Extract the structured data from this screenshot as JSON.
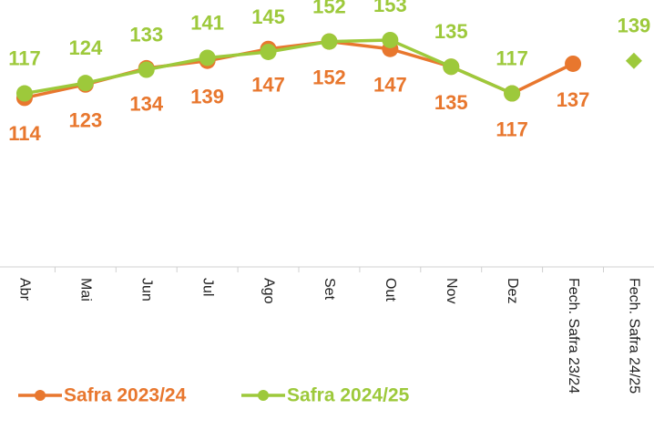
{
  "chart_data": {
    "type": "line",
    "categories": [
      "Abr",
      "Mai",
      "Jun",
      "Jul",
      "Ago",
      "Set",
      "Out",
      "Nov",
      "Dez",
      "Fech. Safra 23/24",
      "Fech. Safra 24/25"
    ],
    "series": [
      {
        "name": "Safra 2023/24",
        "color": "#e8772e",
        "values": [
          114,
          123,
          134,
          139,
          147,
          152,
          147,
          135,
          117,
          137,
          null
        ]
      },
      {
        "name": "Safra 2024/25",
        "color": "#9dc93b",
        "values": [
          117,
          124,
          133,
          141,
          145,
          152,
          153,
          135,
          117,
          null,
          139
        ]
      }
    ],
    "ylim": [
      0,
      180
    ]
  }
}
